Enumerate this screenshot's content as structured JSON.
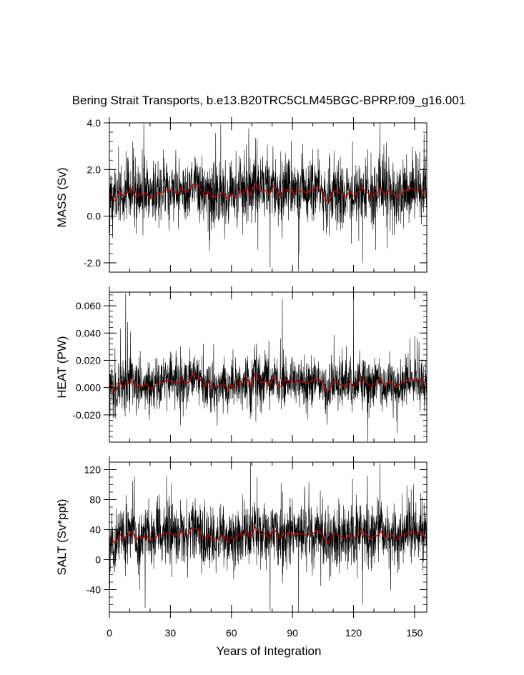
{
  "chart_data": {
    "type": "line",
    "title": "Bering Strait Transports, b.e13.B20TRC5CLM45BGC-BPRP.f09_g16.001",
    "xlabel": "Years of Integration",
    "xlim": [
      0,
      156
    ],
    "xticks": [
      "0",
      "30",
      "60",
      "90",
      "120",
      "150"
    ],
    "xtick_values": [
      0,
      30,
      60,
      90,
      120,
      150
    ],
    "colors": {
      "monthly": "#000000",
      "annual": "#cc0000"
    },
    "panels": [
      {
        "ylabel": "MASS (Sv)",
        "ylim": [
          -2.4,
          4.0
        ],
        "yticks": [
          "-2.0",
          "0.0",
          "2.0",
          "4.0"
        ],
        "ytick_values": [
          -2.0,
          0.0,
          2.0,
          4.0
        ],
        "minor_step": 0.4,
        "mean": 1.0,
        "spread": 0.65,
        "annual_amp": 0.18,
        "spikes": [
          {
            "x": 79.0,
            "y": -2.2
          },
          {
            "x": 93.0,
            "y": -2.35
          },
          {
            "x": 124.5,
            "y": -2.0
          },
          {
            "x": 133.0,
            "y": 4.0
          },
          {
            "x": 72.5,
            "y": 3.3
          },
          {
            "x": 119.5,
            "y": 3.2
          },
          {
            "x": 4.5,
            "y": 3.0
          },
          {
            "x": 11.5,
            "y": 3.2
          }
        ]
      },
      {
        "ylabel": "HEAT (PW)",
        "ylim": [
          -0.04,
          0.07
        ],
        "yticks": [
          "-0.020",
          "0.000",
          "0.020",
          "0.040",
          "0.060"
        ],
        "ytick_values": [
          -0.02,
          0.0,
          0.02,
          0.04,
          0.06
        ],
        "minor_step": 0.004,
        "mean": 0.003,
        "spread": 0.009,
        "annual_amp": 0.003,
        "spikes": [
          {
            "x": 8.0,
            "y": 0.069
          },
          {
            "x": 9.0,
            "y": 0.048
          },
          {
            "x": 85.0,
            "y": 0.065
          },
          {
            "x": 120.0,
            "y": 0.065
          },
          {
            "x": 127.0,
            "y": -0.04
          },
          {
            "x": 72.0,
            "y": -0.025
          }
        ]
      },
      {
        "ylabel": "SALT (Sv*ppt)",
        "ylim": [
          -70,
          130
        ],
        "yticks": [
          "-40",
          "0",
          "40",
          "80",
          "120"
        ],
        "ytick_values": [
          -40,
          0,
          40,
          80,
          120
        ],
        "minor_step": 10,
        "mean": 32,
        "spread": 20,
        "annual_amp": 5,
        "spikes": [
          {
            "x": 79.0,
            "y": -68
          },
          {
            "x": 93.0,
            "y": -70
          },
          {
            "x": 124.5,
            "y": -60
          },
          {
            "x": 133.0,
            "y": 128
          },
          {
            "x": 72.5,
            "y": 110
          },
          {
            "x": 119.5,
            "y": 108
          },
          {
            "x": 11.5,
            "y": 105
          }
        ]
      }
    ]
  }
}
